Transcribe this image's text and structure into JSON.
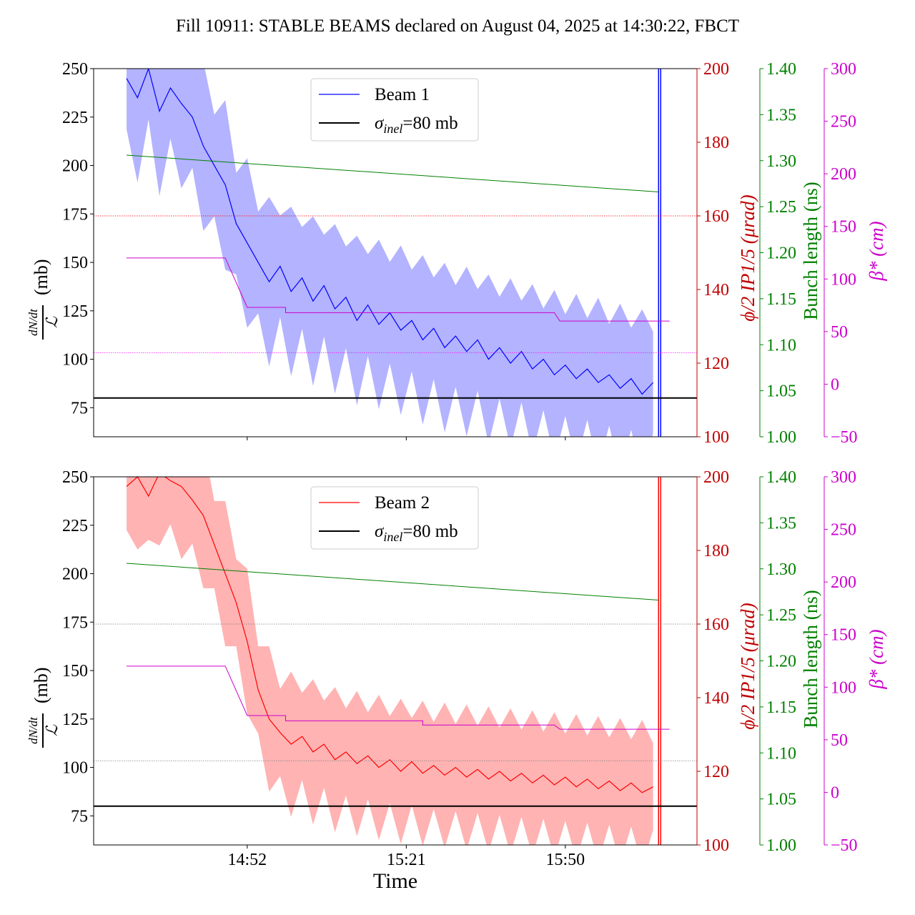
{
  "title": "Fill 10911: STABLE BEAMS declared on August 04, 2025 at 14:30:22, FBCT",
  "chart_data": [
    {
      "type": "line",
      "panel": "top",
      "legend": {
        "placement": "top-center",
        "entries": [
          "Beam 1",
          "σinel=80 mb"
        ]
      },
      "xlabel": "",
      "x_ticks": [
        "14:52",
        "15:21",
        "15:50"
      ],
      "x_tick_labels_shown": false,
      "xlim": [
        "14:24",
        "16:14"
      ],
      "y_left": {
        "label": "dN/dt / ℒ (mb)",
        "ylim": [
          60,
          250
        ],
        "ticks": [
          75,
          100,
          125,
          150,
          175,
          200,
          225,
          250
        ],
        "color": "#000000"
      },
      "y_crossing": {
        "label": "ϕ/2 IP1/5 (μrad)",
        "ylim": [
          100,
          200
        ],
        "ticks": [
          100,
          120,
          140,
          160,
          180,
          200
        ],
        "color": "#c00000"
      },
      "y_bunch": {
        "label": "Bunch length (ns)",
        "ylim": [
          1.0,
          1.4
        ],
        "ticks": [
          "1.00",
          "1.05",
          "1.10",
          "1.15",
          "1.20",
          "1.25",
          "1.30",
          "1.35",
          "1.40"
        ],
        "color": "#008000"
      },
      "y_beta": {
        "label": "β* (cm)",
        "ylim": [
          -50,
          300
        ],
        "ticks": [
          -50,
          0,
          50,
          100,
          150,
          200,
          250,
          300
        ],
        "color": "#cc00cc"
      },
      "series": [
        {
          "name": "Beam 1",
          "color": "#0000ff",
          "band_color": "#8080ff",
          "spread": 35,
          "x": [
            "14:30",
            "14:32",
            "14:34",
            "14:36",
            "14:38",
            "14:40",
            "14:42",
            "14:44",
            "14:46",
            "14:48",
            "14:50",
            "14:52",
            "14:54",
            "14:56",
            "14:58",
            "15:00",
            "15:02",
            "15:04",
            "15:06",
            "15:08",
            "15:10",
            "15:12",
            "15:14",
            "15:16",
            "15:18",
            "15:20",
            "15:22",
            "15:24",
            "15:26",
            "15:28",
            "15:30",
            "15:32",
            "15:34",
            "15:36",
            "15:38",
            "15:40",
            "15:42",
            "15:44",
            "15:46",
            "15:48",
            "15:50",
            "15:52",
            "15:54",
            "15:56",
            "15:58",
            "16:00",
            "16:02",
            "16:04",
            "16:06"
          ],
          "values": [
            245,
            235,
            250,
            228,
            240,
            232,
            225,
            210,
            200,
            190,
            170,
            160,
            150,
            140,
            148,
            135,
            142,
            130,
            138,
            126,
            132,
            120,
            128,
            118,
            124,
            115,
            120,
            110,
            116,
            106,
            112,
            104,
            110,
            100,
            106,
            98,
            104,
            95,
            100,
            92,
            97,
            90,
            95,
            88,
            92,
            85,
            90,
            82,
            88
          ],
          "spike_time": "16:07"
        },
        {
          "name": "",
          "role": "bunch-length",
          "color": "#008000",
          "axis": "y_bunch",
          "x": [
            "14:30",
            "16:07"
          ],
          "values": [
            1.306,
            1.266
          ]
        },
        {
          "name": "",
          "role": "beta-star",
          "color": "#cc00cc",
          "axis": "y_beta",
          "x": [
            "14:30",
            "14:48",
            "14:52",
            "14:59",
            "14:59",
            "15:48",
            "15:49",
            "16:09"
          ],
          "values": [
            120,
            120,
            73,
            73,
            68,
            68,
            60,
            60
          ]
        }
      ],
      "hlines": [
        {
          "label": "σinel=80 mb",
          "axis": "y_left",
          "value": 80,
          "color": "#000000",
          "style": "solid"
        },
        {
          "axis": "y_crossing",
          "value": 160,
          "color": "#ff0000",
          "style": "dotted"
        },
        {
          "axis": "y_beta",
          "value": 30,
          "color": "#ff00ff",
          "style": "dotted"
        }
      ]
    },
    {
      "type": "line",
      "panel": "bottom",
      "legend": {
        "placement": "top-center",
        "entries": [
          "Beam 2",
          "σinel=80 mb"
        ]
      },
      "xlabel": "Time",
      "x_ticks": [
        "14:52",
        "15:21",
        "15:50"
      ],
      "x_tick_labels_shown": true,
      "xlim": [
        "14:24",
        "16:14"
      ],
      "y_left": {
        "label": "dN/dt / ℒ (mb)",
        "ylim": [
          60,
          250
        ],
        "ticks": [
          75,
          100,
          125,
          150,
          175,
          200,
          225,
          250
        ],
        "color": "#000000"
      },
      "y_crossing": {
        "label": "ϕ/2 IP1/5 (μrad)",
        "ylim": [
          100,
          200
        ],
        "ticks": [
          100,
          120,
          140,
          160,
          180,
          200
        ],
        "color": "#c00000"
      },
      "y_bunch": {
        "label": "Bunch length (ns)",
        "ylim": [
          1.0,
          1.4
        ],
        "ticks": [
          "1.00",
          "1.05",
          "1.10",
          "1.15",
          "1.20",
          "1.25",
          "1.30",
          "1.35",
          "1.40"
        ],
        "color": "#008000"
      },
      "y_beta": {
        "label": "β* (cm)",
        "ylim": [
          -50,
          300
        ],
        "ticks": [
          -50,
          0,
          50,
          100,
          150,
          200,
          250,
          300
        ],
        "color": "#cc00cc"
      },
      "series": [
        {
          "name": "Beam 2",
          "color": "#ff0000",
          "band_color": "#ff8080",
          "spread": 30,
          "x": [
            "14:30",
            "14:32",
            "14:34",
            "14:36",
            "14:38",
            "14:40",
            "14:42",
            "14:44",
            "14:46",
            "14:48",
            "14:50",
            "14:52",
            "14:54",
            "14:56",
            "14:58",
            "15:00",
            "15:02",
            "15:04",
            "15:06",
            "15:08",
            "15:10",
            "15:12",
            "15:14",
            "15:16",
            "15:18",
            "15:20",
            "15:22",
            "15:24",
            "15:26",
            "15:28",
            "15:30",
            "15:32",
            "15:34",
            "15:36",
            "15:38",
            "15:40",
            "15:42",
            "15:44",
            "15:46",
            "15:48",
            "15:50",
            "15:52",
            "15:54",
            "15:56",
            "15:58",
            "16:00",
            "16:02",
            "16:04",
            "16:06"
          ],
          "values": [
            245,
            250,
            240,
            252,
            248,
            245,
            238,
            230,
            215,
            200,
            185,
            165,
            140,
            125,
            118,
            112,
            116,
            108,
            112,
            104,
            108,
            102,
            106,
            100,
            104,
            98,
            103,
            97,
            101,
            96,
            100,
            95,
            99,
            94,
            98,
            93,
            97,
            92,
            96,
            91,
            95,
            90,
            94,
            89,
            93,
            88,
            92,
            87,
            90
          ],
          "spike_time": "16:07"
        },
        {
          "name": "",
          "role": "bunch-length",
          "color": "#008000",
          "axis": "y_bunch",
          "x": [
            "14:30",
            "16:07"
          ],
          "values": [
            1.306,
            1.266
          ]
        },
        {
          "name": "",
          "role": "beta-star",
          "color": "#cc00cc",
          "axis": "y_beta",
          "x": [
            "14:30",
            "14:48",
            "14:52",
            "14:59",
            "14:59",
            "15:24",
            "15:24",
            "15:48",
            "15:49",
            "16:09"
          ],
          "values": [
            120,
            120,
            73,
            73,
            68,
            68,
            64,
            64,
            60,
            60
          ]
        }
      ],
      "hlines": [
        {
          "label": "σinel=80 mb",
          "axis": "y_left",
          "value": 80,
          "color": "#000000",
          "style": "solid"
        },
        {
          "axis": "y_crossing",
          "value": 160,
          "color": "#808080",
          "style": "dotted"
        },
        {
          "axis": "y_beta",
          "value": 30,
          "color": "#808080",
          "style": "dotted"
        }
      ]
    }
  ]
}
